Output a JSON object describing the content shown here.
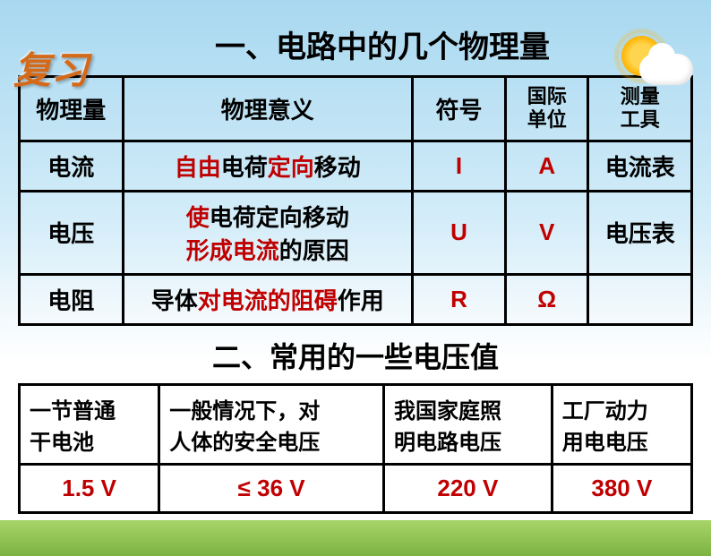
{
  "decorations": {
    "fuxi_label": "复习"
  },
  "section1": {
    "title": "一、电路中的几个物理量",
    "headers": {
      "qty": "物理量",
      "meaning": "物理意义",
      "symbol": "符号",
      "unit_line1": "国际",
      "unit_line2": "单位",
      "tool_line1": "测量",
      "tool_line2": "工具"
    },
    "rows": [
      {
        "qty": "电流",
        "meaning_parts": [
          {
            "text": "自由",
            "color": "#c00000"
          },
          {
            "text": "电荷",
            "color": "#000"
          },
          {
            "text": "定向",
            "color": "#c00000"
          },
          {
            "text": "移动",
            "color": "#000"
          }
        ],
        "symbol": "I",
        "symbol_color": "#c00000",
        "unit": "A",
        "unit_color": "#c00000",
        "tool": "电流表"
      },
      {
        "qty": "电压",
        "meaning_line1": [
          {
            "text": "使",
            "color": "#c00000"
          },
          {
            "text": "电荷定向移动",
            "color": "#000"
          }
        ],
        "meaning_line2": [
          {
            "text": "形成电流",
            "color": "#c00000"
          },
          {
            "text": "的原因",
            "color": "#000"
          }
        ],
        "symbol": "U",
        "symbol_color": "#c00000",
        "unit": "V",
        "unit_color": "#c00000",
        "tool": "电压表"
      },
      {
        "qty": "电阻",
        "meaning_parts": [
          {
            "text": "导体",
            "color": "#000"
          },
          {
            "text": "对电流的阻碍",
            "color": "#c00000"
          },
          {
            "text": "作用",
            "color": "#000"
          }
        ],
        "symbol": "R",
        "symbol_color": "#c00000",
        "unit": "Ω",
        "unit_color": "#c00000",
        "tool": ""
      }
    ]
  },
  "section2": {
    "title": "二、常用的一些电压值",
    "items": [
      {
        "label_line1": "一节普通",
        "label_line2": "干电池",
        "value": "1.5 V"
      },
      {
        "label_line1": "一般情况下，对",
        "label_line2": "人体的安全电压",
        "value": "≤ 36 V"
      },
      {
        "label_line1": "我国家庭照",
        "label_line2": "明电路电压",
        "value": "220 V"
      },
      {
        "label_line1": "工厂动力",
        "label_line2": "用电电压",
        "value": "380 V"
      }
    ]
  },
  "colors": {
    "accent_red": "#c00000",
    "text_black": "#000000",
    "border": "#000000",
    "fuxi_color": "#d4691a"
  }
}
